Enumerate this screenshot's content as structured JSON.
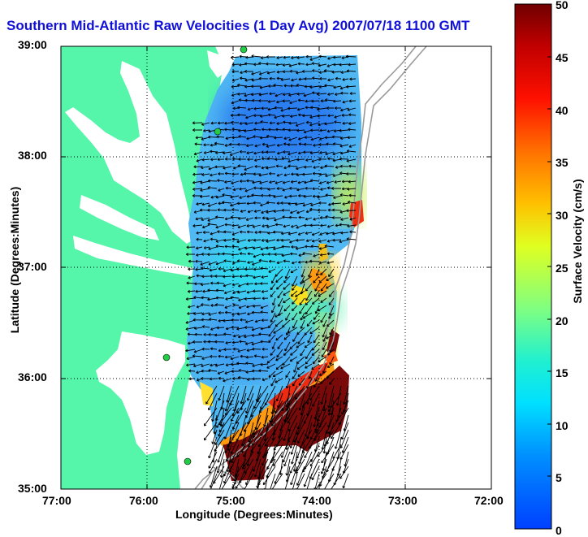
{
  "title": "Southern Mid-Atlantic Raw Velocities (1 Day Avg) 2007/07/18 1100 GMT",
  "x_axis_label": "Longitude (Degrees:Minutes)",
  "y_axis_label": "Latitude (Degrees:Minutes)",
  "x_ticks": [
    "77:00",
    "76:00",
    "75:00",
    "74:00",
    "73:00",
    "72:00"
  ],
  "y_ticks": [
    "39:00",
    "38:00",
    "37:00",
    "36:00",
    "35:00"
  ],
  "colorbar": {
    "label": "Surface Velocity (cm/s)",
    "ticks": [
      "50",
      "45",
      "40",
      "35",
      "30",
      "25",
      "20",
      "15",
      "10",
      "5",
      "0"
    ],
    "range": [
      0,
      50
    ]
  },
  "colors": {
    "land": "#55f5aa",
    "water_bay": "#ffffff",
    "title": "#1010d8",
    "station": "#22cc44",
    "bathymetry": "#9a9a9a"
  }
}
